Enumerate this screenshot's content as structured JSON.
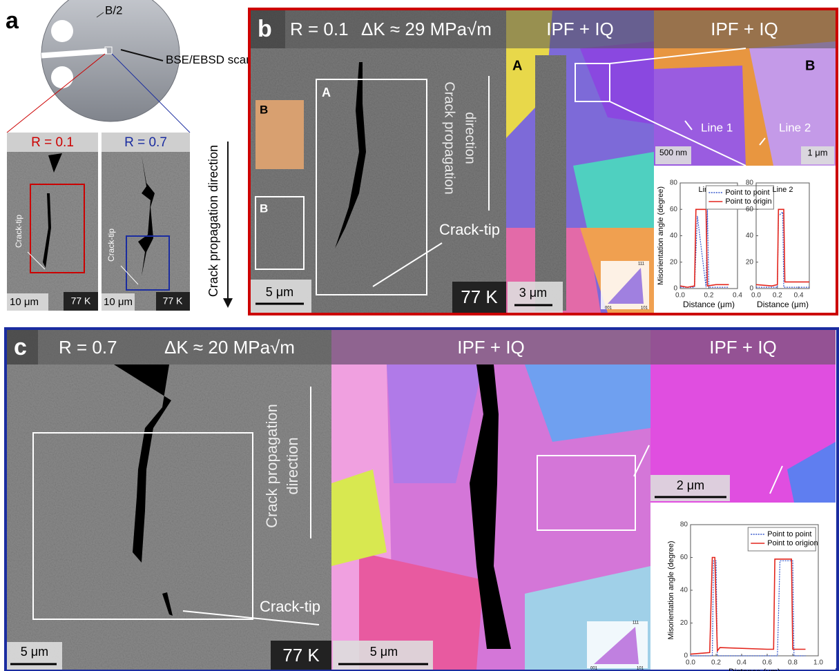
{
  "panels": {
    "a": {
      "label": "a",
      "disc": "B/2",
      "scan": "BSE/EBSD scan region",
      "direction": "Crack propagation direction",
      "left": {
        "title": "R = 0.1",
        "crack_tip": "Crack-tip",
        "scale": "10 μm",
        "temp": "77 K"
      },
      "right": {
        "title": "R = 0.7",
        "crack_tip": "Crack-tip",
        "scale": "10 μm",
        "temp": "77 K"
      }
    },
    "b": {
      "label": "b",
      "ratio": "R = 0.1",
      "dk": "ΔK ≈ 29 MPa√m",
      "ipf_headers": [
        "IPF + IQ",
        "IPF + IQ"
      ],
      "sem": {
        "box_a": "A",
        "inset_b": "B",
        "box_b": "B",
        "direction": [
          "Crack propagation",
          "direction"
        ],
        "crack_tip": "Crack-tip",
        "scale": "5 μm",
        "temp": "77 K"
      },
      "ipf": {
        "box": "A",
        "scale": "3 μm",
        "triangle": [
          "111",
          "001",
          "101"
        ]
      },
      "zoom": {
        "box": "B",
        "line1": "Line 1",
        "line2": "Line 2",
        "scale1": "500 nm",
        "scale2": "1 μm"
      }
    },
    "c": {
      "label": "c",
      "ratio": "R = 0.7",
      "dk": "ΔK ≈ 20 MPa√m",
      "ipf_headers": [
        "IPF + IQ",
        "IPF + IQ"
      ],
      "sem": {
        "direction": [
          "Crack propagation",
          "direction"
        ],
        "crack_tip": "Crack-tip",
        "scale": "5 μm",
        "temp": "77 K"
      },
      "ipf": {
        "scale": "5 μm",
        "triangle": [
          "111",
          "001",
          "101"
        ]
      },
      "zoom": {
        "scale": "2 μm"
      }
    }
  },
  "chart_data": [
    {
      "type": "line",
      "title": "Line 1",
      "ylabel": "Misorientation angle (degree)",
      "xlabel": "Distance (μm)",
      "xlim": [
        0,
        0.4
      ],
      "xticks": [
        {
          "value": 0,
          "label": "0.0"
        },
        0.2,
        0.4
      ],
      "ylim": [
        0,
        80
      ],
      "yticks": [
        0,
        20,
        40,
        60,
        80
      ],
      "legend": true,
      "series": [
        {
          "name": "Point to point",
          "color": "#3355cc",
          "style": "dotted",
          "x": [
            0,
            0.1,
            0.12,
            0.18,
            0.19,
            0.2,
            0.34
          ],
          "values": [
            1,
            1,
            55,
            1,
            60,
            1,
            1
          ]
        },
        {
          "name": "Point to origin",
          "color": "#e3241b",
          "style": "solid",
          "x": [
            0,
            0.05,
            0.1,
            0.11,
            0.18,
            0.19,
            0.25,
            0.34
          ],
          "values": [
            2,
            1,
            2,
            60,
            60,
            2,
            3,
            3
          ]
        }
      ]
    },
    {
      "type": "line",
      "title": "Line 2",
      "xlabel": "Distance (μm)",
      "xlim": [
        0,
        0.5
      ],
      "xticks": [
        {
          "value": 0,
          "label": "0.0"
        },
        0.2,
        0.4
      ],
      "ylim": [
        0,
        80
      ],
      "yticks": [
        0,
        20,
        40,
        60,
        80
      ],
      "series": [
        {
          "color": "#3355cc",
          "style": "dotted",
          "x": [
            0,
            0.2,
            0.21,
            0.25,
            0.26,
            0.5
          ],
          "values": [
            1,
            1,
            55,
            58,
            1,
            1
          ]
        },
        {
          "color": "#e3241b",
          "style": "solid",
          "x": [
            0,
            0.15,
            0.2,
            0.21,
            0.26,
            0.27,
            0.35,
            0.5
          ],
          "values": [
            3,
            2,
            3,
            60,
            60,
            5,
            5,
            5
          ]
        }
      ]
    },
    {
      "type": "line",
      "ylabel": "Misorientation angle (degree)",
      "xlabel": "Distance (μm)",
      "xlim": [
        0,
        1.0
      ],
      "xticks": [
        {
          "value": 0,
          "label": "0.0"
        },
        0.2,
        0.4,
        0.6,
        0.8,
        {
          "value": 1,
          "label": "1.0"
        }
      ],
      "ylim": [
        0,
        80
      ],
      "yticks": [
        0,
        20,
        40,
        60,
        80
      ],
      "legend": true,
      "series": [
        {
          "name": "Point to point",
          "color": "#3355cc",
          "style": "dotted",
          "x": [
            0,
            0.17,
            0.18,
            0.2,
            0.21,
            0.68,
            0.7,
            0.8,
            0.81,
            0.9
          ],
          "values": [
            0,
            0,
            58,
            58,
            0,
            0,
            58,
            58,
            0,
            0
          ]
        },
        {
          "name": "Point to origion",
          "color": "#e3241b",
          "style": "solid",
          "x": [
            0,
            0.15,
            0.17,
            0.19,
            0.21,
            0.23,
            0.6,
            0.65,
            0.66,
            0.79,
            0.8,
            0.9
          ],
          "values": [
            1,
            2,
            60,
            60,
            3,
            5,
            4,
            4,
            59,
            59,
            4,
            4
          ]
        }
      ]
    }
  ]
}
